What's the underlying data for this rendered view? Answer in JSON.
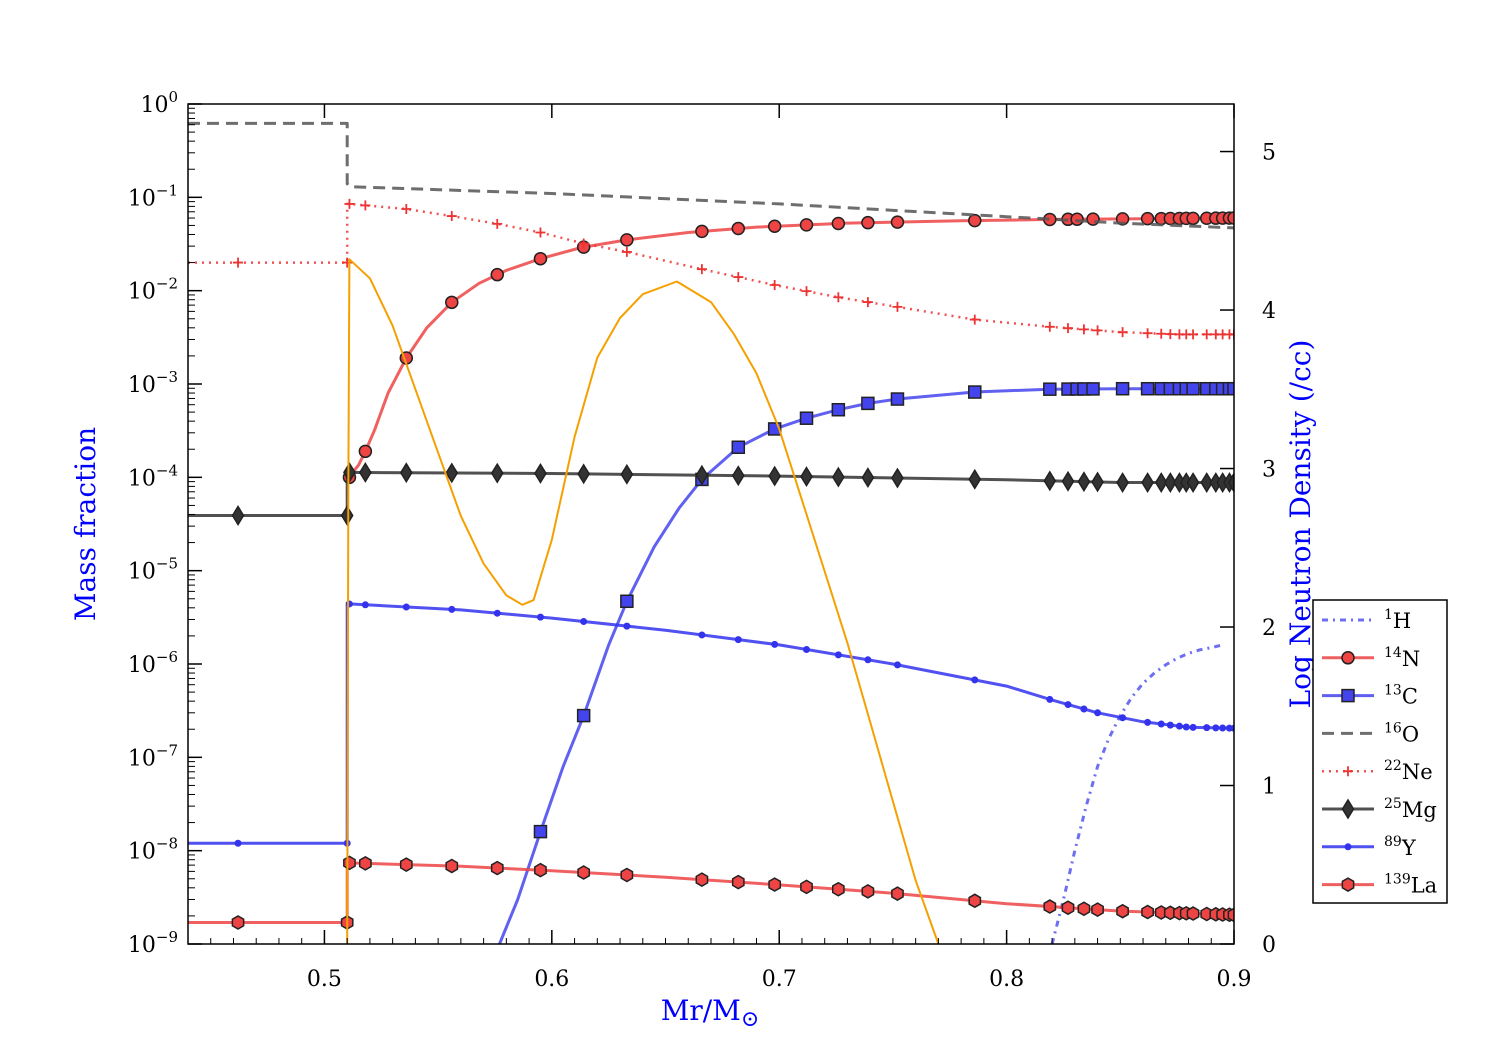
{
  "chart_data": {
    "type": "line",
    "xlabel": "Mr/M",
    "xlabel_symbol": "⊙",
    "ylabel": "Mass fraction",
    "y2label": "Log Neutron Density (/cc)",
    "label_color": "#0000ff",
    "xlim": [
      0.44,
      0.9
    ],
    "ylim": [
      1e-09,
      1.0
    ],
    "yscale": "log",
    "y2lim": [
      0,
      5.3
    ],
    "x_ticks": [
      {
        "value": 0.5,
        "label": "0.5"
      },
      {
        "value": 0.6,
        "label": "0.6"
      },
      {
        "value": 0.7,
        "label": "0.7"
      },
      {
        "value": 0.8,
        "label": "0.8"
      },
      {
        "value": 0.9,
        "label": "0.9"
      }
    ],
    "y_ticks": [
      {
        "value": 1.0,
        "base": "10",
        "exp": "0"
      },
      {
        "value": 0.1,
        "base": "10",
        "exp": "−1"
      },
      {
        "value": 0.01,
        "base": "10",
        "exp": "−2"
      },
      {
        "value": 0.001,
        "base": "10",
        "exp": "−3"
      },
      {
        "value": 0.0001,
        "base": "10",
        "exp": "−4"
      },
      {
        "value": 1e-05,
        "base": "10",
        "exp": "−5"
      },
      {
        "value": 1e-06,
        "base": "10",
        "exp": "−6"
      },
      {
        "value": 1e-07,
        "base": "10",
        "exp": "−7"
      },
      {
        "value": 1e-08,
        "base": "10",
        "exp": "−8"
      },
      {
        "value": 1e-09,
        "base": "10",
        "exp": "−9"
      }
    ],
    "y2_ticks": [
      {
        "value": 0,
        "label": "0"
      },
      {
        "value": 1,
        "label": "1"
      },
      {
        "value": 2,
        "label": "2"
      },
      {
        "value": 3,
        "label": "3"
      },
      {
        "value": 4,
        "label": "4"
      },
      {
        "value": 5,
        "label": "5"
      }
    ],
    "legend_position": "lower-right, outside",
    "series": [
      {
        "id": "h1",
        "mass": "1",
        "element": "H",
        "color": "#5555ee",
        "dash": "6,5,2,5",
        "width": 3,
        "marker": "none",
        "x": [
          0.82,
          0.825,
          0.83,
          0.835,
          0.84,
          0.845,
          0.85,
          0.855,
          0.86,
          0.865,
          0.87,
          0.875,
          0.88,
          0.885,
          0.89,
          0.895
        ],
        "y": [
          1e-09,
          3e-09,
          1e-08,
          3e-08,
          8e-08,
          1.6e-07,
          2.8e-07,
          4.4e-07,
          6.2e-07,
          8e-07,
          9.8e-07,
          1.15e-06,
          1.3e-06,
          1.42e-06,
          1.5e-06,
          1.6e-06
        ],
        "markers_x": []
      },
      {
        "id": "n14",
        "mass": "14",
        "element": "N",
        "color": "#ee4444",
        "dash": "",
        "width": 3,
        "marker": "circle",
        "x": [
          0.511,
          0.512,
          0.515,
          0.518,
          0.522,
          0.528,
          0.536,
          0.545,
          0.556,
          0.568,
          0.58,
          0.595,
          0.613,
          0.633,
          0.66,
          0.69,
          0.73,
          0.78,
          0.82,
          0.86,
          0.9
        ],
        "y": [
          0.0001,
          0.00011,
          0.000135,
          0.00019,
          0.00032,
          0.0008,
          0.0019,
          0.004,
          0.0075,
          0.012,
          0.0165,
          0.022,
          0.029,
          0.035,
          0.042,
          0.048,
          0.053,
          0.056,
          0.058,
          0.059,
          0.06
        ],
        "markers_x": [
          0.511,
          0.518,
          0.536,
          0.556,
          0.576,
          0.595,
          0.614,
          0.633,
          0.666,
          0.682,
          0.698,
          0.712,
          0.726,
          0.739,
          0.752,
          0.786,
          0.819,
          0.827,
          0.831,
          0.838,
          0.851,
          0.862,
          0.868,
          0.872,
          0.876,
          0.879,
          0.882,
          0.888,
          0.892,
          0.895,
          0.898,
          0.9
        ],
        "markers_y": []
      },
      {
        "id": "c13",
        "mass": "13",
        "element": "C",
        "color": "#4444ee",
        "dash": "",
        "width": 3,
        "marker": "square",
        "x": [
          0.577,
          0.585,
          0.595,
          0.605,
          0.614,
          0.625,
          0.633,
          0.645,
          0.656,
          0.666,
          0.682,
          0.698,
          0.712,
          0.726,
          0.739,
          0.752,
          0.786,
          0.819,
          0.85,
          0.9
        ],
        "y": [
          1e-09,
          3e-09,
          1.6e-08,
          8e-08,
          2.8e-07,
          1.6e-06,
          4.7e-06,
          1.8e-05,
          4.7e-05,
          9.5e-05,
          0.00021,
          0.00033,
          0.00043,
          0.00053,
          0.00062,
          0.00069,
          0.00082,
          0.00088,
          0.00089,
          0.00089
        ],
        "markers_x": [
          0.595,
          0.614,
          0.633,
          0.666,
          0.682,
          0.698,
          0.712,
          0.726,
          0.739,
          0.752,
          0.786,
          0.819,
          0.827,
          0.831,
          0.834,
          0.838,
          0.851,
          0.862,
          0.868,
          0.872,
          0.876,
          0.879,
          0.882,
          0.888,
          0.892,
          0.895,
          0.898,
          0.9
        ],
        "markers_y": []
      },
      {
        "id": "o16",
        "mass": "16",
        "element": "O",
        "color": "#555555",
        "dash": "12,7",
        "width": 3,
        "marker": "none",
        "x": [
          0.44,
          0.51,
          0.51,
          0.511,
          0.6,
          0.7,
          0.8,
          0.85,
          0.9
        ],
        "y": [
          0.62,
          0.62,
          0.14,
          0.13,
          0.11,
          0.085,
          0.062,
          0.053,
          0.047
        ],
        "markers_x": []
      },
      {
        "id": "ne22",
        "mass": "22",
        "element": "Ne",
        "color": "#ee3333",
        "dash": "2,5",
        "width": 2.5,
        "marker": "plus",
        "x": [
          0.44,
          0.51,
          0.51,
          0.511,
          0.518,
          0.536,
          0.556,
          0.576,
          0.595,
          0.614,
          0.633,
          0.666,
          0.698,
          0.726,
          0.752,
          0.786,
          0.819,
          0.85,
          0.875,
          0.9
        ],
        "y": [
          0.02,
          0.02,
          0.085,
          0.085,
          0.082,
          0.075,
          0.063,
          0.052,
          0.042,
          0.032,
          0.026,
          0.017,
          0.0115,
          0.0085,
          0.0067,
          0.0049,
          0.0041,
          0.0036,
          0.0034,
          0.0034
        ],
        "markers_x": [
          0.462,
          0.51,
          0.511,
          0.518,
          0.536,
          0.556,
          0.576,
          0.595,
          0.614,
          0.633,
          0.666,
          0.682,
          0.698,
          0.712,
          0.726,
          0.739,
          0.752,
          0.786,
          0.819,
          0.827,
          0.834,
          0.84,
          0.851,
          0.862,
          0.868,
          0.872,
          0.876,
          0.879,
          0.882,
          0.888,
          0.892,
          0.895,
          0.898,
          0.9
        ],
        "markers_y": []
      },
      {
        "id": "mg25",
        "mass": "25",
        "element": "Mg",
        "color": "#333333",
        "dash": "",
        "width": 3,
        "marker": "diamond",
        "x": [
          0.44,
          0.51,
          0.51,
          0.511,
          0.6,
          0.7,
          0.8,
          0.85,
          0.9
        ],
        "y": [
          3.9e-05,
          3.9e-05,
          0.00011,
          0.000113,
          0.00011,
          0.000103,
          9.4e-05,
          8.8e-05,
          8.8e-05
        ],
        "markers_x": [
          0.462,
          0.51,
          0.511,
          0.518,
          0.536,
          0.556,
          0.576,
          0.595,
          0.614,
          0.633,
          0.666,
          0.682,
          0.698,
          0.712,
          0.726,
          0.739,
          0.752,
          0.786,
          0.819,
          0.827,
          0.834,
          0.84,
          0.851,
          0.862,
          0.868,
          0.872,
          0.876,
          0.879,
          0.882,
          0.888,
          0.892,
          0.895,
          0.898,
          0.9
        ],
        "markers_y": []
      },
      {
        "id": "y89",
        "mass": "89",
        "element": "Y",
        "color": "#3333ee",
        "dash": "",
        "width": 3,
        "marker": "dot",
        "x": [
          0.44,
          0.51,
          0.51,
          0.511,
          0.56,
          0.6,
          0.65,
          0.7,
          0.75,
          0.8,
          0.82,
          0.84,
          0.86,
          0.88,
          0.9
        ],
        "y": [
          1.2e-08,
          1.2e-08,
          4.5e-06,
          4.4e-06,
          3.8e-06,
          3.1e-06,
          2.3e-06,
          1.6e-06,
          1e-06,
          5.8e-07,
          4.1e-07,
          3e-07,
          2.4e-07,
          2.1e-07,
          2.05e-07
        ],
        "markers_x": [
          0.462,
          0.51,
          0.511,
          0.518,
          0.536,
          0.556,
          0.576,
          0.595,
          0.614,
          0.633,
          0.666,
          0.682,
          0.698,
          0.712,
          0.726,
          0.739,
          0.752,
          0.786,
          0.819,
          0.827,
          0.834,
          0.84,
          0.851,
          0.862,
          0.868,
          0.872,
          0.876,
          0.879,
          0.882,
          0.888,
          0.892,
          0.895,
          0.898,
          0.9
        ],
        "markers_y": []
      },
      {
        "id": "la139",
        "mass": "139",
        "element": "La",
        "color": "#ee4444",
        "dash": "",
        "width": 3,
        "marker": "hexagon",
        "x": [
          0.44,
          0.51,
          0.51,
          0.511,
          0.56,
          0.6,
          0.65,
          0.7,
          0.75,
          0.8,
          0.85,
          0.9
        ],
        "y": [
          1.7e-09,
          1.7e-09,
          7.5e-09,
          7.4e-09,
          6.8e-09,
          6.1e-09,
          5.2e-09,
          4.3e-09,
          3.5e-09,
          2.7e-09,
          2.25e-09,
          2.05e-09
        ],
        "markers_x": [
          0.462,
          0.51,
          0.511,
          0.518,
          0.536,
          0.556,
          0.576,
          0.595,
          0.614,
          0.633,
          0.666,
          0.682,
          0.698,
          0.712,
          0.726,
          0.739,
          0.752,
          0.786,
          0.819,
          0.827,
          0.834,
          0.84,
          0.851,
          0.862,
          0.868,
          0.872,
          0.876,
          0.879,
          0.882,
          0.888,
          0.892,
          0.895,
          0.898,
          0.9
        ],
        "markers_y": []
      }
    ],
    "neutron_density": {
      "color": "#f5a000",
      "width": 2,
      "axis": "y2",
      "x": [
        0.51,
        0.5105,
        0.5108,
        0.511,
        0.52,
        0.53,
        0.54,
        0.55,
        0.56,
        0.57,
        0.58,
        0.587,
        0.592,
        0.6,
        0.61,
        0.62,
        0.63,
        0.64,
        0.655,
        0.67,
        0.68,
        0.69,
        0.7,
        0.71,
        0.72,
        0.73,
        0.74,
        0.75,
        0.76,
        0.77
      ],
      "y": [
        0,
        2.8,
        3.8,
        4.32,
        4.2,
        3.9,
        3.5,
        3.1,
        2.7,
        2.4,
        2.2,
        2.14,
        2.17,
        2.55,
        3.2,
        3.7,
        3.95,
        4.1,
        4.18,
        4.05,
        3.85,
        3.6,
        3.25,
        2.8,
        2.35,
        1.9,
        1.4,
        0.9,
        0.4,
        0
      ]
    }
  }
}
